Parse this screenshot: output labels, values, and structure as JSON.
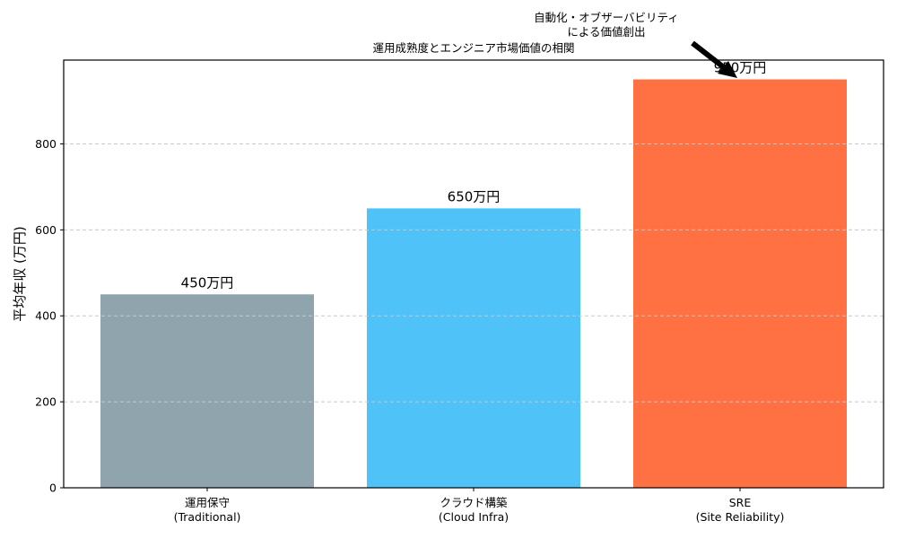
{
  "chart_data": {
    "type": "bar",
    "title": "運用成熟度とエンジニア市場価値の相関",
    "xlabel": "",
    "ylabel": "平均年収 (万円)",
    "categories": [
      "運用保守\n(Traditional)",
      "クラウド構築\n(Cloud Infra)",
      "SRE\n(Site Reliability)"
    ],
    "category_lines": [
      [
        "運用保守",
        "(Traditional)"
      ],
      [
        "クラウド構築",
        "(Cloud Infra)"
      ],
      [
        "SRE",
        "(Site Reliability)"
      ]
    ],
    "values": [
      450,
      650,
      950
    ],
    "value_labels": [
      "450万円",
      "650万円",
      "950万円"
    ],
    "colors": [
      "#90a4ae",
      "#4fc3f7",
      "#ff7043"
    ],
    "ylim": [
      0,
      995
    ],
    "yticks": [
      0,
      200,
      400,
      600,
      800
    ],
    "grid": {
      "axis": "y",
      "style": "dashed",
      "color": "#c8c8c8"
    },
    "legend": null,
    "annotations": [
      {
        "text_lines": [
          "自動化・オブザーバビリティ",
          "による価値創出"
        ],
        "arrow_to_category": "SRE\n(Site Reliability)",
        "arrow_color": "#000000"
      }
    ]
  }
}
